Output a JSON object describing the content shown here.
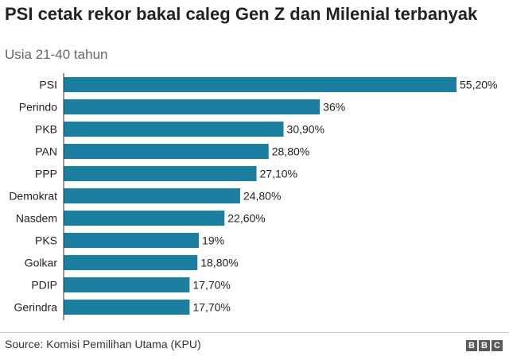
{
  "title": "PSI cetak rekor bakal caleg Gen Z dan Milenial terbanyak",
  "subtitle": "Usia 21-40 tahun",
  "source": "Source: Komisi Pemilihan Utama (KPU)",
  "logo_letters": [
    "B",
    "B",
    "C"
  ],
  "colors": {
    "bar": "#1a7fa0",
    "text": "#222222",
    "axis": "#333333"
  },
  "chart_data": {
    "type": "bar",
    "orientation": "horizontal",
    "categories": [
      "PSI",
      "Perindo",
      "PKB",
      "PAN",
      "PPP",
      "Demokrat",
      "Nasdem",
      "PKS",
      "Golkar",
      "PDIP",
      "Gerindra"
    ],
    "values": [
      55.2,
      36,
      30.9,
      28.8,
      27.1,
      24.8,
      22.6,
      19,
      18.8,
      17.7,
      17.7
    ],
    "value_labels": [
      "55,20%",
      "36%",
      "30,90%",
      "28,80%",
      "27,10%",
      "24,80%",
      "22,60%",
      "19%",
      "18,80%",
      "17,70%",
      "17,70%"
    ],
    "title": "PSI cetak rekor bakal caleg Gen Z dan Milenial terbanyak",
    "xlabel": "",
    "ylabel": "",
    "xlim": [
      0,
      55.2
    ],
    "grid": false,
    "legend": "none"
  }
}
